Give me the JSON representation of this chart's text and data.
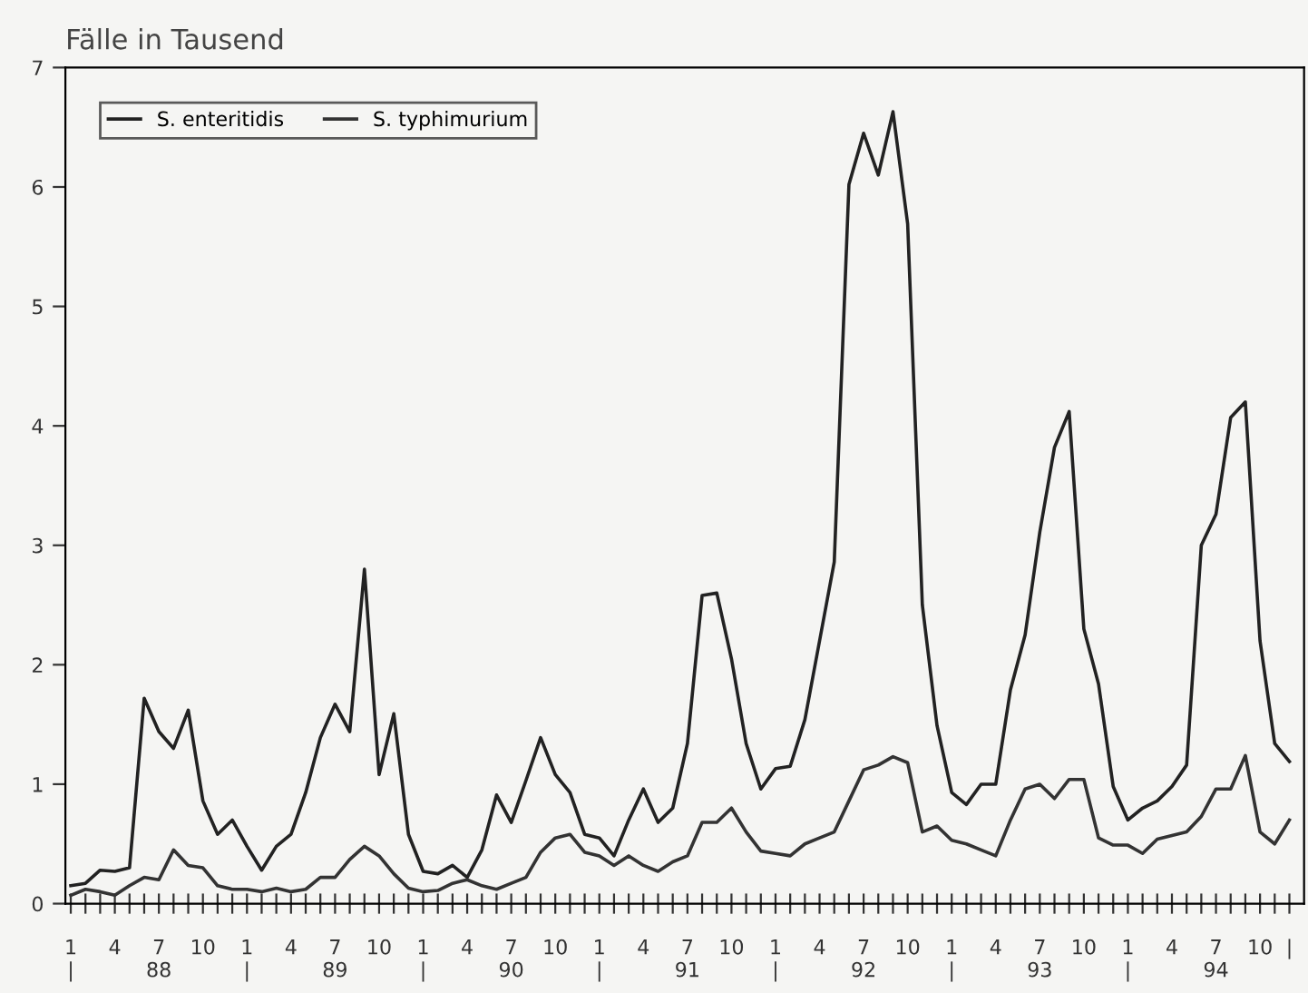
{
  "chart_data": {
    "type": "line",
    "ylabel": "Fälle in Tausend",
    "x": [
      "1988-01",
      "1988-02",
      "1988-03",
      "1988-04",
      "1988-05",
      "1988-06",
      "1988-07",
      "1988-08",
      "1988-09",
      "1988-10",
      "1988-11",
      "1988-12",
      "1989-01",
      "1989-02",
      "1989-03",
      "1989-04",
      "1989-05",
      "1989-06",
      "1989-07",
      "1989-08",
      "1989-09",
      "1989-10",
      "1989-11",
      "1989-12",
      "1990-01",
      "1990-02",
      "1990-03",
      "1990-04",
      "1990-05",
      "1990-06",
      "1990-07",
      "1990-08",
      "1990-09",
      "1990-10",
      "1990-11",
      "1990-12",
      "1991-01",
      "1991-02",
      "1991-03",
      "1991-04",
      "1991-05",
      "1991-06",
      "1991-07",
      "1991-08",
      "1991-09",
      "1991-10",
      "1991-11",
      "1991-12",
      "1992-01",
      "1992-02",
      "1992-03",
      "1992-04",
      "1992-05",
      "1992-06",
      "1992-07",
      "1992-08",
      "1992-09",
      "1992-10",
      "1992-11",
      "1992-12",
      "1993-01",
      "1993-02",
      "1993-03",
      "1993-04",
      "1993-05",
      "1993-06",
      "1993-07",
      "1993-08",
      "1993-09",
      "1993-10",
      "1993-11",
      "1993-12",
      "1994-01",
      "1994-02",
      "1994-03",
      "1994-04",
      "1994-05",
      "1994-06",
      "1994-07",
      "1994-08",
      "1994-09",
      "1994-10",
      "1994-11",
      "1994-12"
    ],
    "series": [
      {
        "name": "S. enteritidis",
        "color": "#222222",
        "values": [
          0.15,
          0.17,
          0.28,
          0.27,
          0.3,
          1.72,
          1.44,
          1.3,
          1.62,
          0.86,
          0.58,
          0.7,
          0.48,
          0.28,
          0.48,
          0.58,
          0.93,
          1.39,
          1.67,
          1.44,
          2.8,
          1.08,
          1.59,
          0.58,
          0.27,
          0.25,
          0.32,
          0.22,
          0.45,
          0.91,
          0.68,
          1.03,
          1.39,
          1.08,
          0.93,
          0.58,
          0.55,
          0.4,
          0.7,
          0.96,
          0.68,
          0.8,
          1.34,
          2.58,
          2.6,
          2.05,
          1.34,
          0.96,
          1.13,
          1.15,
          1.54,
          2.2,
          2.86,
          6.02,
          6.45,
          6.1,
          6.63,
          5.69,
          2.5,
          1.49,
          0.93,
          0.83,
          1.0,
          1.0,
          1.79,
          2.25,
          3.11,
          3.82,
          4.12,
          2.3,
          1.84,
          0.98,
          0.7,
          0.8,
          0.86,
          0.98,
          1.16,
          3.0,
          3.26,
          4.07,
          4.2,
          2.2,
          1.34,
          1.19
        ]
      },
      {
        "name": "S. typhimurium",
        "color": "#333333",
        "values": [
          0.07,
          0.12,
          0.1,
          0.07,
          0.15,
          0.22,
          0.2,
          0.45,
          0.32,
          0.3,
          0.15,
          0.12,
          0.12,
          0.1,
          0.13,
          0.1,
          0.12,
          0.22,
          0.22,
          0.37,
          0.48,
          0.4,
          0.25,
          0.13,
          0.1,
          0.11,
          0.17,
          0.2,
          0.15,
          0.12,
          0.17,
          0.22,
          0.43,
          0.55,
          0.58,
          0.43,
          0.4,
          0.32,
          0.4,
          0.32,
          0.27,
          0.35,
          0.4,
          0.68,
          0.68,
          0.8,
          0.6,
          0.44,
          0.42,
          0.4,
          0.5,
          0.55,
          0.6,
          0.86,
          1.12,
          1.16,
          1.23,
          1.18,
          0.6,
          0.65,
          0.53,
          0.5,
          0.45,
          0.4,
          0.7,
          0.96,
          1.0,
          0.88,
          1.04,
          1.04,
          0.55,
          0.49,
          0.49,
          0.42,
          0.54,
          0.57,
          0.6,
          0.73,
          0.96,
          0.96,
          1.24,
          0.6,
          0.5,
          0.7
        ]
      }
    ],
    "xlim": [
      "1987-12-20",
      "1994-12-31"
    ],
    "ylim": [
      0,
      7
    ],
    "yticks": [
      0,
      1,
      2,
      3,
      4,
      5,
      6,
      7
    ],
    "xticks": [
      {
        "value": "1988-01",
        "label": "1\n|"
      },
      {
        "value": "1988-02",
        "label": null
      },
      {
        "value": "1988-03",
        "label": null
      },
      {
        "value": "1988-04",
        "label": "4"
      },
      {
        "value": "1988-05",
        "label": null
      },
      {
        "value": "1988-06",
        "label": null
      },
      {
        "value": "1988-07",
        "label": "7\n88"
      },
      {
        "value": "1988-08",
        "label": null
      },
      {
        "value": "1988-09",
        "label": null
      },
      {
        "value": "1988-10",
        "label": "10"
      },
      {
        "value": "1988-11",
        "label": null
      },
      {
        "value": "1988-12",
        "label": null
      },
      {
        "value": "1989-01",
        "label": "1\n|"
      },
      {
        "value": "1989-02",
        "label": null
      },
      {
        "value": "1989-03",
        "label": null
      },
      {
        "value": "1989-04",
        "label": "4"
      },
      {
        "value": "1989-05",
        "label": null
      },
      {
        "value": "1989-06",
        "label": null
      },
      {
        "value": "1989-07",
        "label": "7\n89"
      },
      {
        "value": "1989-08",
        "label": null
      },
      {
        "value": "1989-09",
        "label": null
      },
      {
        "value": "1989-10",
        "label": "10"
      },
      {
        "value": "1989-11",
        "label": null
      },
      {
        "value": "1989-12",
        "label": null
      },
      {
        "value": "1990-01",
        "label": "1\n|"
      },
      {
        "value": "1990-02",
        "label": null
      },
      {
        "value": "1990-03",
        "label": null
      },
      {
        "value": "1990-04",
        "label": "4"
      },
      {
        "value": "1990-05",
        "label": null
      },
      {
        "value": "1990-06",
        "label": null
      },
      {
        "value": "1990-07",
        "label": "7\n90"
      },
      {
        "value": "1990-08",
        "label": null
      },
      {
        "value": "1990-09",
        "label": null
      },
      {
        "value": "1990-10",
        "label": "10"
      },
      {
        "value": "1990-11",
        "label": null
      },
      {
        "value": "1990-12",
        "label": null
      },
      {
        "value": "1991-01",
        "label": "1\n|"
      },
      {
        "value": "1991-02",
        "label": null
      },
      {
        "value": "1991-03",
        "label": null
      },
      {
        "value": "1991-04",
        "label": "4"
      },
      {
        "value": "1991-05",
        "label": null
      },
      {
        "value": "1991-06",
        "label": null
      },
      {
        "value": "1991-07",
        "label": "7\n91"
      },
      {
        "value": "1991-08",
        "label": null
      },
      {
        "value": "1991-09",
        "label": null
      },
      {
        "value": "1991-10",
        "label": "10"
      },
      {
        "value": "1991-11",
        "label": null
      },
      {
        "value": "1991-12",
        "label": null
      },
      {
        "value": "1992-01",
        "label": "1\n|"
      },
      {
        "value": "1992-02",
        "label": null
      },
      {
        "value": "1992-03",
        "label": null
      },
      {
        "value": "1992-04",
        "label": "4"
      },
      {
        "value": "1992-05",
        "label": null
      },
      {
        "value": "1992-06",
        "label": null
      },
      {
        "value": "1992-07",
        "label": "7\n92"
      },
      {
        "value": "1992-08",
        "label": null
      },
      {
        "value": "1992-09",
        "label": null
      },
      {
        "value": "1992-10",
        "label": "10"
      },
      {
        "value": "1992-11",
        "label": null
      },
      {
        "value": "1992-12",
        "label": null
      },
      {
        "value": "1993-01",
        "label": "1\n|"
      },
      {
        "value": "1993-02",
        "label": null
      },
      {
        "value": "1993-03",
        "label": null
      },
      {
        "value": "1993-04",
        "label": "4"
      },
      {
        "value": "1993-05",
        "label": null
      },
      {
        "value": "1993-06",
        "label": null
      },
      {
        "value": "1993-07",
        "label": "7\n93"
      },
      {
        "value": "1993-08",
        "label": null
      },
      {
        "value": "1993-09",
        "label": null
      },
      {
        "value": "1993-10",
        "label": "10"
      },
      {
        "value": "1993-11",
        "label": null
      },
      {
        "value": "1993-12",
        "label": null
      },
      {
        "value": "1994-01",
        "label": "1\n|"
      },
      {
        "value": "1994-02",
        "label": null
      },
      {
        "value": "1994-03",
        "label": null
      },
      {
        "value": "1994-04",
        "label": "4"
      },
      {
        "value": "1994-05",
        "label": null
      },
      {
        "value": "1994-06",
        "label": null
      },
      {
        "value": "1994-07",
        "label": "7\n94"
      },
      {
        "value": "1994-08",
        "label": null
      },
      {
        "value": "1994-09",
        "label": null
      },
      {
        "value": "1994-10",
        "label": "10"
      },
      {
        "value": "1994-11",
        "label": null
      },
      {
        "value": "1994-12",
        "label": "|"
      }
    ],
    "legend": "top left",
    "grid": false,
    "marker": "none",
    "line_style": "solid"
  }
}
